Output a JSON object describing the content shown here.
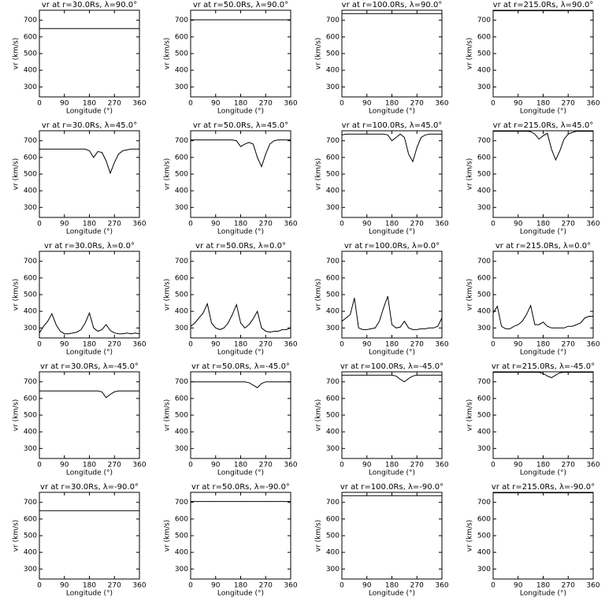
{
  "chart_data": [
    {
      "type": "line",
      "title": "vr at r=30.0Rs, λ=90.0°",
      "xlabel": "Longitude (°)",
      "ylabel": "vr (km/s)",
      "x": [
        0,
        360
      ],
      "values": [
        650,
        650
      ],
      "xlim": [
        0,
        360
      ],
      "ylim": [
        240,
        760
      ],
      "xticks": [
        0,
        90,
        180,
        270,
        360
      ],
      "yticks": [
        300,
        400,
        500,
        600,
        700
      ],
      "color": "#000000"
    },
    {
      "type": "line",
      "title": "vr at r=50.0Rs, λ=90.0°",
      "xlabel": "Longitude (°)",
      "ylabel": "vr (km/s)",
      "x": [
        0,
        360
      ],
      "values": [
        703,
        703
      ],
      "xlim": [
        0,
        360
      ],
      "ylim": [
        240,
        760
      ],
      "xticks": [
        0,
        90,
        180,
        270,
        360
      ],
      "yticks": [
        300,
        400,
        500,
        600,
        700
      ],
      "color": "#000000"
    },
    {
      "type": "line",
      "title": "vr at r=100.0Rs, λ=90.0°",
      "xlabel": "Longitude (°)",
      "ylabel": "vr (km/s)",
      "x": [
        0,
        360
      ],
      "values": [
        740,
        740
      ],
      "xlim": [
        0,
        360
      ],
      "ylim": [
        240,
        760
      ],
      "xticks": [
        0,
        90,
        180,
        270,
        360
      ],
      "yticks": [
        300,
        400,
        500,
        600,
        700
      ],
      "color": "#000000"
    },
    {
      "type": "line",
      "title": "vr at r=215.0Rs, λ=90.0°",
      "xlabel": "Longitude (°)",
      "ylabel": "vr (km/s)",
      "x": [
        0,
        360
      ],
      "values": [
        757,
        757
      ],
      "xlim": [
        0,
        360
      ],
      "ylim": [
        240,
        760
      ],
      "xticks": [
        0,
        90,
        180,
        270,
        360
      ],
      "yticks": [
        300,
        400,
        500,
        600,
        700
      ],
      "color": "#000000"
    },
    {
      "type": "line",
      "title": "vr at r=30.0Rs, λ=45.0°",
      "xlabel": "Longitude (°)",
      "ylabel": "vr (km/s)",
      "x": [
        0,
        15,
        30,
        45,
        60,
        75,
        90,
        105,
        120,
        135,
        150,
        165,
        180,
        195,
        210,
        225,
        240,
        255,
        270,
        285,
        300,
        315,
        330,
        345,
        360
      ],
      "values": [
        650,
        650,
        650,
        650,
        650,
        650,
        650,
        650,
        650,
        650,
        650,
        650,
        640,
        600,
        635,
        630,
        580,
        505,
        570,
        620,
        640,
        645,
        650,
        650,
        650
      ],
      "xlim": [
        0,
        360
      ],
      "ylim": [
        240,
        760
      ],
      "xticks": [
        0,
        90,
        180,
        270,
        360
      ],
      "yticks": [
        300,
        400,
        500,
        600,
        700
      ],
      "color": "#000000"
    },
    {
      "type": "line",
      "title": "vr at r=50.0Rs, λ=45.0°",
      "xlabel": "Longitude (°)",
      "ylabel": "vr (km/s)",
      "x": [
        0,
        15,
        30,
        45,
        60,
        75,
        90,
        105,
        120,
        135,
        150,
        165,
        180,
        195,
        210,
        225,
        240,
        255,
        270,
        285,
        300,
        315,
        330,
        345,
        360
      ],
      "values": [
        705,
        705,
        705,
        705,
        705,
        705,
        705,
        705,
        705,
        705,
        705,
        700,
        665,
        680,
        690,
        680,
        600,
        545,
        620,
        680,
        700,
        705,
        705,
        705,
        705
      ],
      "xlim": [
        0,
        360
      ],
      "ylim": [
        240,
        760
      ],
      "xticks": [
        0,
        90,
        180,
        270,
        360
      ],
      "yticks": [
        300,
        400,
        500,
        600,
        700
      ],
      "color": "#000000"
    },
    {
      "type": "line",
      "title": "vr at r=100.0Rs, λ=45.0°",
      "xlabel": "Longitude (°)",
      "ylabel": "vr (km/s)",
      "x": [
        0,
        15,
        30,
        45,
        60,
        75,
        90,
        105,
        120,
        135,
        150,
        165,
        180,
        195,
        210,
        225,
        240,
        255,
        270,
        285,
        300,
        315,
        330,
        345,
        360
      ],
      "values": [
        735,
        740,
        740,
        740,
        740,
        740,
        740,
        740,
        740,
        740,
        740,
        735,
        700,
        720,
        740,
        720,
        620,
        575,
        660,
        720,
        735,
        740,
        740,
        740,
        740
      ],
      "xlim": [
        0,
        360
      ],
      "ylim": [
        240,
        760
      ],
      "xticks": [
        0,
        90,
        180,
        270,
        360
      ],
      "yticks": [
        300,
        400,
        500,
        600,
        700
      ],
      "color": "#000000"
    },
    {
      "type": "line",
      "title": "vr at r=215.0Rs, λ=45.0°",
      "xlabel": "Longitude (°)",
      "ylabel": "vr (km/s)",
      "x": [
        0,
        15,
        30,
        45,
        60,
        75,
        90,
        105,
        120,
        135,
        150,
        165,
        180,
        195,
        210,
        225,
        240,
        255,
        270,
        285,
        300,
        315,
        330,
        345,
        360
      ],
      "values": [
        757,
        757,
        757,
        757,
        757,
        757,
        757,
        757,
        757,
        755,
        740,
        710,
        730,
        745,
        650,
        585,
        640,
        710,
        740,
        750,
        757,
        757,
        757,
        757,
        757
      ],
      "xlim": [
        0,
        360
      ],
      "ylim": [
        240,
        760
      ],
      "xticks": [
        0,
        90,
        180,
        270,
        360
      ],
      "yticks": [
        300,
        400,
        500,
        600,
        700
      ],
      "color": "#000000"
    },
    {
      "type": "line",
      "title": "vr at r=30.0Rs, λ=0.0°",
      "xlabel": "Longitude (°)",
      "ylabel": "vr (km/s)",
      "x": [
        0,
        15,
        30,
        45,
        60,
        75,
        90,
        105,
        120,
        135,
        150,
        165,
        180,
        195,
        210,
        225,
        240,
        255,
        270,
        285,
        300,
        315,
        330,
        345,
        360
      ],
      "values": [
        270,
        310,
        340,
        385,
        320,
        280,
        265,
        265,
        270,
        275,
        290,
        330,
        390,
        300,
        280,
        290,
        320,
        285,
        270,
        265,
        265,
        270,
        265,
        270,
        265
      ],
      "xlim": [
        0,
        360
      ],
      "ylim": [
        240,
        760
      ],
      "xticks": [
        0,
        90,
        180,
        270,
        360
      ],
      "yticks": [
        300,
        400,
        500,
        600,
        700
      ],
      "color": "#000000"
    },
    {
      "type": "line",
      "title": "vr at r=50.0Rs, λ=0.0°",
      "xlabel": "Longitude (°)",
      "ylabel": "vr (km/s)",
      "x": [
        0,
        15,
        30,
        45,
        60,
        75,
        90,
        105,
        120,
        135,
        150,
        165,
        180,
        195,
        210,
        225,
        240,
        255,
        270,
        285,
        300,
        315,
        330,
        345,
        360
      ],
      "values": [
        310,
        330,
        360,
        390,
        445,
        330,
        300,
        290,
        300,
        330,
        380,
        440,
        330,
        300,
        320,
        355,
        400,
        300,
        280,
        275,
        280,
        280,
        290,
        290,
        300
      ],
      "xlim": [
        0,
        360
      ],
      "ylim": [
        240,
        760
      ],
      "xticks": [
        0,
        90,
        180,
        270,
        360
      ],
      "yticks": [
        300,
        400,
        500,
        600,
        700
      ],
      "color": "#000000"
    },
    {
      "type": "line",
      "title": "vr at r=100.0Rs, λ=0.0°",
      "xlabel": "Longitude (°)",
      "ylabel": "vr (km/s)",
      "x": [
        0,
        15,
        30,
        45,
        60,
        75,
        90,
        105,
        120,
        135,
        150,
        165,
        180,
        195,
        210,
        225,
        240,
        255,
        270,
        285,
        300,
        315,
        330,
        345,
        360
      ],
      "values": [
        340,
        360,
        380,
        480,
        300,
        290,
        290,
        295,
        300,
        340,
        420,
        490,
        320,
        300,
        305,
        340,
        300,
        290,
        290,
        295,
        295,
        300,
        300,
        310,
        360
      ],
      "xlim": [
        0,
        360
      ],
      "ylim": [
        240,
        760
      ],
      "xticks": [
        0,
        90,
        180,
        270,
        360
      ],
      "yticks": [
        300,
        400,
        500,
        600,
        700
      ],
      "color": "#000000"
    },
    {
      "type": "line",
      "title": "vr at r=215.0Rs, λ=0.0°",
      "xlabel": "Longitude (°)",
      "ylabel": "vr (km/s)",
      "x": [
        0,
        15,
        30,
        45,
        60,
        75,
        90,
        105,
        120,
        135,
        150,
        165,
        180,
        195,
        210,
        225,
        240,
        255,
        270,
        285,
        300,
        315,
        330,
        345,
        360
      ],
      "values": [
        390,
        430,
        310,
        295,
        295,
        310,
        320,
        340,
        380,
        435,
        320,
        320,
        335,
        310,
        300,
        300,
        300,
        300,
        310,
        310,
        320,
        330,
        360,
        370,
        370
      ],
      "xlim": [
        0,
        360
      ],
      "ylim": [
        240,
        760
      ],
      "xticks": [
        0,
        90,
        180,
        270,
        360
      ],
      "yticks": [
        300,
        400,
        500,
        600,
        700
      ],
      "color": "#000000"
    },
    {
      "type": "line",
      "title": "vr at r=30.0Rs, λ=-45.0°",
      "xlabel": "Longitude (°)",
      "ylabel": "vr (km/s)",
      "x": [
        0,
        15,
        30,
        45,
        60,
        75,
        90,
        105,
        120,
        135,
        150,
        165,
        180,
        195,
        210,
        225,
        240,
        255,
        270,
        285,
        300,
        315,
        330,
        345,
        360
      ],
      "values": [
        645,
        645,
        645,
        645,
        645,
        645,
        645,
        645,
        645,
        645,
        645,
        645,
        645,
        645,
        645,
        640,
        605,
        625,
        640,
        645,
        645,
        645,
        645,
        645,
        645
      ],
      "xlim": [
        0,
        360
      ],
      "ylim": [
        240,
        760
      ],
      "xticks": [
        0,
        90,
        180,
        270,
        360
      ],
      "yticks": [
        300,
        400,
        500,
        600,
        700
      ],
      "color": "#000000"
    },
    {
      "type": "line",
      "title": "vr at r=50.0Rs, λ=-45.0°",
      "xlabel": "Longitude (°)",
      "ylabel": "vr (km/s)",
      "x": [
        0,
        15,
        30,
        45,
        60,
        75,
        90,
        105,
        120,
        135,
        150,
        165,
        180,
        195,
        210,
        225,
        240,
        255,
        270,
        285,
        300,
        315,
        330,
        345,
        360
      ],
      "values": [
        700,
        700,
        700,
        700,
        700,
        700,
        700,
        700,
        700,
        700,
        700,
        700,
        700,
        700,
        695,
        680,
        665,
        690,
        700,
        700,
        700,
        700,
        700,
        700,
        700
      ],
      "xlim": [
        0,
        360
      ],
      "ylim": [
        240,
        760
      ],
      "xticks": [
        0,
        90,
        180,
        270,
        360
      ],
      "yticks": [
        300,
        400,
        500,
        600,
        700
      ],
      "color": "#000000"
    },
    {
      "type": "line",
      "title": "vr at r=100.0Rs, λ=-45.0°",
      "xlabel": "Longitude (°)",
      "ylabel": "vr (km/s)",
      "x": [
        0,
        15,
        30,
        45,
        60,
        75,
        90,
        105,
        120,
        135,
        150,
        165,
        180,
        195,
        210,
        225,
        240,
        255,
        270,
        285,
        300,
        315,
        330,
        345,
        360
      ],
      "values": [
        740,
        740,
        740,
        740,
        740,
        740,
        740,
        740,
        740,
        740,
        740,
        740,
        740,
        735,
        715,
        700,
        720,
        735,
        740,
        740,
        740,
        740,
        740,
        740,
        740
      ],
      "xlim": [
        0,
        360
      ],
      "ylim": [
        240,
        760
      ],
      "xticks": [
        0,
        90,
        180,
        270,
        360
      ],
      "yticks": [
        300,
        400,
        500,
        600,
        700
      ],
      "color": "#000000"
    },
    {
      "type": "line",
      "title": "vr at r=215.0Rs, λ=-45.0°",
      "xlabel": "Longitude (°)",
      "ylabel": "vr (km/s)",
      "x": [
        0,
        15,
        30,
        45,
        60,
        75,
        90,
        105,
        120,
        135,
        150,
        165,
        180,
        195,
        210,
        225,
        240,
        255,
        270,
        285,
        300,
        315,
        330,
        345,
        360
      ],
      "values": [
        757,
        757,
        757,
        757,
        757,
        757,
        757,
        757,
        757,
        757,
        757,
        757,
        750,
        735,
        725,
        740,
        755,
        757,
        757,
        757,
        757,
        757,
        757,
        757,
        757
      ],
      "xlim": [
        0,
        360
      ],
      "ylim": [
        240,
        760
      ],
      "xticks": [
        0,
        90,
        180,
        270,
        360
      ],
      "yticks": [
        300,
        400,
        500,
        600,
        700
      ],
      "color": "#000000"
    },
    {
      "type": "line",
      "title": "vr at r=30.0Rs, λ=-90.0°",
      "xlabel": "Longitude (°)",
      "ylabel": "vr (km/s)",
      "x": [
        0,
        360
      ],
      "values": [
        650,
        650
      ],
      "xlim": [
        0,
        360
      ],
      "ylim": [
        240,
        760
      ],
      "xticks": [
        0,
        90,
        180,
        270,
        360
      ],
      "yticks": [
        300,
        400,
        500,
        600,
        700
      ],
      "color": "#000000"
    },
    {
      "type": "line",
      "title": "vr at r=50.0Rs, λ=-90.0°",
      "xlabel": "Longitude (°)",
      "ylabel": "vr (km/s)",
      "x": [
        0,
        360
      ],
      "values": [
        705,
        705
      ],
      "xlim": [
        0,
        360
      ],
      "ylim": [
        240,
        760
      ],
      "xticks": [
        0,
        90,
        180,
        270,
        360
      ],
      "yticks": [
        300,
        400,
        500,
        600,
        700
      ],
      "color": "#000000"
    },
    {
      "type": "line",
      "title": "vr at r=100.0Rs, λ=-90.0°",
      "xlabel": "Longitude (°)",
      "ylabel": "vr (km/s)",
      "x": [
        0,
        360
      ],
      "values": [
        740,
        740
      ],
      "xlim": [
        0,
        360
      ],
      "ylim": [
        240,
        760
      ],
      "xticks": [
        0,
        90,
        180,
        270,
        360
      ],
      "yticks": [
        300,
        400,
        500,
        600,
        700
      ],
      "color": "#000000"
    },
    {
      "type": "line",
      "title": "vr at r=215.0Rs, λ=-90.0°",
      "xlabel": "Longitude (°)",
      "ylabel": "vr (km/s)",
      "x": [
        0,
        360
      ],
      "values": [
        757,
        757
      ],
      "xlim": [
        0,
        360
      ],
      "ylim": [
        240,
        760
      ],
      "xticks": [
        0,
        90,
        180,
        270,
        360
      ],
      "yticks": [
        300,
        400,
        500,
        600,
        700
      ],
      "color": "#000000"
    }
  ]
}
